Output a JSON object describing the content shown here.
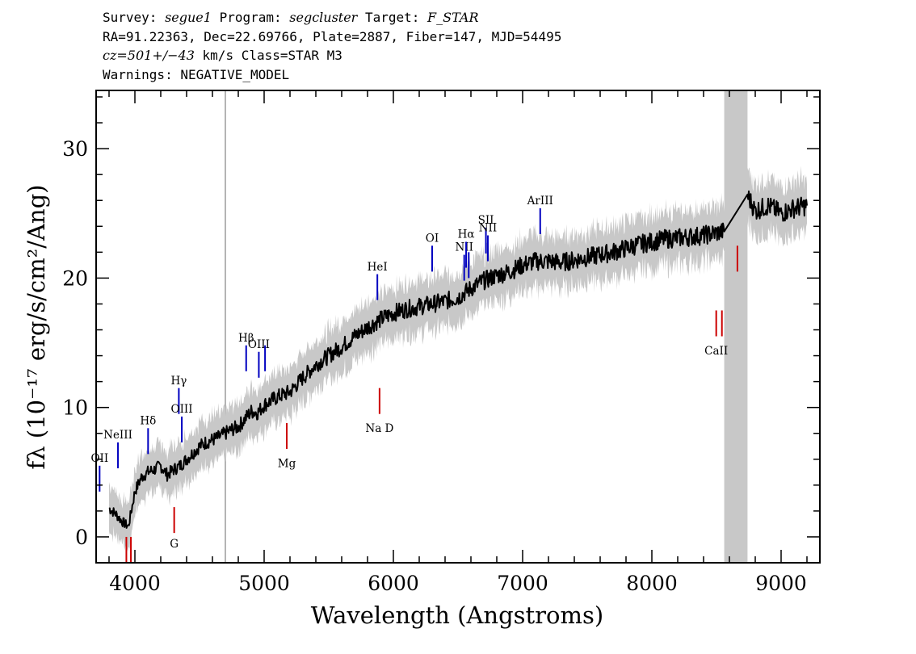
{
  "header": {
    "line1": {
      "survey_label": "Survey: ",
      "survey": "segue1",
      "program_label": " Program: ",
      "program": "segcluster",
      "target_label": " Target: ",
      "target": "F_STAR"
    },
    "line2": "RA=91.22363, Dec=22.69766, Plate=2887, Fiber=147, MJD=54495",
    "line3": {
      "cz": "cz=501+/−43",
      "rest": " km/s Class=STAR M3"
    },
    "line4": "Warnings: NEGATIVE_MODEL"
  },
  "colors": {
    "flux": "#000000",
    "error": "#c8c8c8",
    "emission": "#0000c0",
    "absorption": "#cc0000",
    "band": "#c8c8c8"
  },
  "chart_data": {
    "type": "line",
    "xlabel": "Wavelength (Angstroms)",
    "ylabel": "fλ (10⁻¹⁷ erg/s/cm²/Ang)",
    "xlim": [
      3700,
      9300
    ],
    "ylim": [
      -2,
      34.5
    ],
    "xticks": [
      4000,
      5000,
      6000,
      7000,
      8000,
      9000
    ],
    "yticks": [
      0,
      10,
      20,
      30
    ],
    "vline_x": 4700,
    "masked_band": [
      8560,
      8740
    ],
    "series": [
      {
        "kind": "flux",
        "x": [
          3800,
          3850,
          3900,
          3950,
          4000,
          4050,
          4100,
          4150,
          4200,
          4250,
          4300,
          4350,
          4400,
          4450,
          4500,
          4550,
          4600,
          4650,
          4700,
          4750,
          4800,
          4850,
          4900,
          4950,
          5000,
          5100,
          5200,
          5300,
          5400,
          5500,
          5600,
          5700,
          5800,
          5900,
          6000,
          6100,
          6200,
          6300,
          6400,
          6500,
          6600,
          6700,
          6800,
          6900,
          7000,
          7100,
          7200,
          7300,
          7400,
          7500,
          7600,
          7700,
          7800,
          7900,
          8000,
          8100,
          8200,
          8300,
          8400,
          8500,
          8560,
          8740,
          8800,
          8900,
          9000,
          9100,
          9200
        ],
        "y": [
          2.2,
          1.8,
          1.2,
          0.8,
          3.5,
          4.6,
          5.0,
          5.2,
          5.5,
          4.8,
          5.2,
          5.5,
          6.0,
          6.5,
          7.0,
          7.3,
          7.5,
          7.7,
          8.0,
          8.3,
          8.5,
          9.1,
          9.7,
          9.6,
          10.2,
          10.8,
          11.2,
          12.3,
          13.3,
          14.0,
          14.7,
          15.5,
          16.2,
          16.8,
          17.3,
          17.6,
          17.8,
          18.0,
          18.2,
          18.5,
          19.2,
          19.8,
          20.2,
          20.5,
          21.0,
          21.3,
          21.3,
          21.2,
          21.4,
          21.6,
          21.8,
          22.0,
          22.3,
          22.6,
          22.8,
          23.0,
          23.1,
          23.2,
          23.3,
          23.5,
          23.6,
          26.4,
          25.2,
          25.6,
          25.0,
          25.4,
          25.6
        ]
      }
    ],
    "emission_lines": [
      {
        "label": "OII",
        "x": 3727,
        "y0": 3.5,
        "y1": 5.5,
        "label_y": 5.8
      },
      {
        "label": "NeIII",
        "x": 3869,
        "y0": 5.3,
        "y1": 7.3,
        "label_y": 7.6
      },
      {
        "label": "Hδ",
        "x": 4102,
        "y0": 6.4,
        "y1": 8.4,
        "label_y": 8.7
      },
      {
        "label": "Hγ",
        "x": 4340,
        "y0": 9.5,
        "y1": 11.5,
        "label_y": 11.8
      },
      {
        "label": "OIII",
        "x": 4363,
        "y0": 7.3,
        "y1": 9.3,
        "label_y": 9.6
      },
      {
        "label": "Hβ",
        "x": 4861,
        "y0": 12.8,
        "y1": 14.8,
        "label_y": 15.1
      },
      {
        "label": "OIII",
        "x": 4959,
        "y0": 12.3,
        "y1": 14.3,
        "label_y": 14.6
      },
      {
        "label": "OIII",
        "x": 5007,
        "y0": 12.8,
        "y1": 14.8,
        "label_y": null
      },
      {
        "label": "HeI",
        "x": 5876,
        "y0": 18.3,
        "y1": 20.3,
        "label_y": 20.6
      },
      {
        "label": "OI",
        "x": 6300,
        "y0": 20.5,
        "y1": 22.5,
        "label_y": 22.8
      },
      {
        "label": "NII",
        "x": 6548,
        "y0": 19.8,
        "y1": 21.8,
        "label_y": 22.1
      },
      {
        "label": "Hα",
        "x": 6563,
        "y0": 20.8,
        "y1": 22.8,
        "label_y": 23.1
      },
      {
        "label": "NII",
        "x": 6583,
        "y0": 20.0,
        "y1": 22.0,
        "label_y": null
      },
      {
        "label": "SII",
        "x": 6716,
        "y0": 21.9,
        "y1": 23.9,
        "label_y": 24.2
      },
      {
        "label": "NII",
        "x": 6731,
        "y0": 21.3,
        "y1": 23.3,
        "label_y": 23.6
      },
      {
        "label": "ArIII",
        "x": 7136,
        "y0": 23.4,
        "y1": 25.4,
        "label_y": 25.7
      }
    ],
    "absorption_lines": [
      {
        "label": "",
        "x": 3934,
        "y0": -2.0,
        "y1": 0.0,
        "label_y": null
      },
      {
        "label": "",
        "x": 3969,
        "y0": -2.0,
        "y1": 0.0,
        "label_y": null
      },
      {
        "label": "G",
        "x": 4304,
        "y0": 0.3,
        "y1": 2.3,
        "label_y": -0.8
      },
      {
        "label": "Mg",
        "x": 5175,
        "y0": 6.8,
        "y1": 8.8,
        "label_y": 5.4
      },
      {
        "label": "Na D",
        "x": 5893,
        "y0": 9.5,
        "y1": 11.5,
        "label_y": 8.1
      },
      {
        "label": "CaII",
        "x": 8498,
        "y0": 15.5,
        "y1": 17.5,
        "label_y": 14.1
      },
      {
        "label": "",
        "x": 8542,
        "y0": 15.5,
        "y1": 17.5,
        "label_y": null
      },
      {
        "label": "",
        "x": 8662,
        "y0": 20.5,
        "y1": 22.5,
        "label_y": null
      }
    ]
  }
}
